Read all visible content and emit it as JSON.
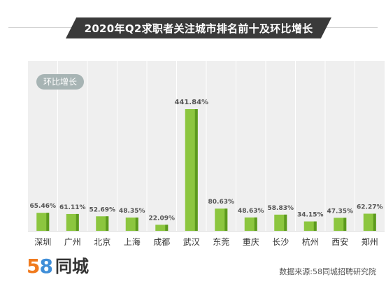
{
  "logo": {
    "number": "58",
    "name": "同城"
  },
  "source": "数据来源:58同城招聘研究院",
  "colors": {
    "bar": "#8cc63f",
    "bar_shade": "#5c9a1e",
    "banner": "#3a3a3a",
    "tag": "#a7b4b4"
  },
  "chart_data": {
    "type": "bar",
    "title": "2020年Q2求职者关注城市排名前十及环比增长",
    "ylabel": "环比增长",
    "xlabel": "",
    "categories": [
      "深圳",
      "广州",
      "北京",
      "上海",
      "成都",
      "武汉",
      "东莞",
      "重庆",
      "长沙",
      "杭州",
      "西安",
      "郑州"
    ],
    "values": [
      65.46,
      61.11,
      52.69,
      48.35,
      22.09,
      441.84,
      80.63,
      48.63,
      58.83,
      34.15,
      47.35,
      62.27
    ],
    "data_labels": [
      "65.46%",
      "61.11%",
      "52.69%",
      "48.35%",
      "22.09%",
      "441.84%",
      "80.63%",
      "48.63%",
      "58.83%",
      "34.15%",
      "47.35%",
      "62.27%"
    ],
    "ylim": [
      0,
      460
    ],
    "unit": "%",
    "grid": "vertical",
    "legend": "none"
  }
}
